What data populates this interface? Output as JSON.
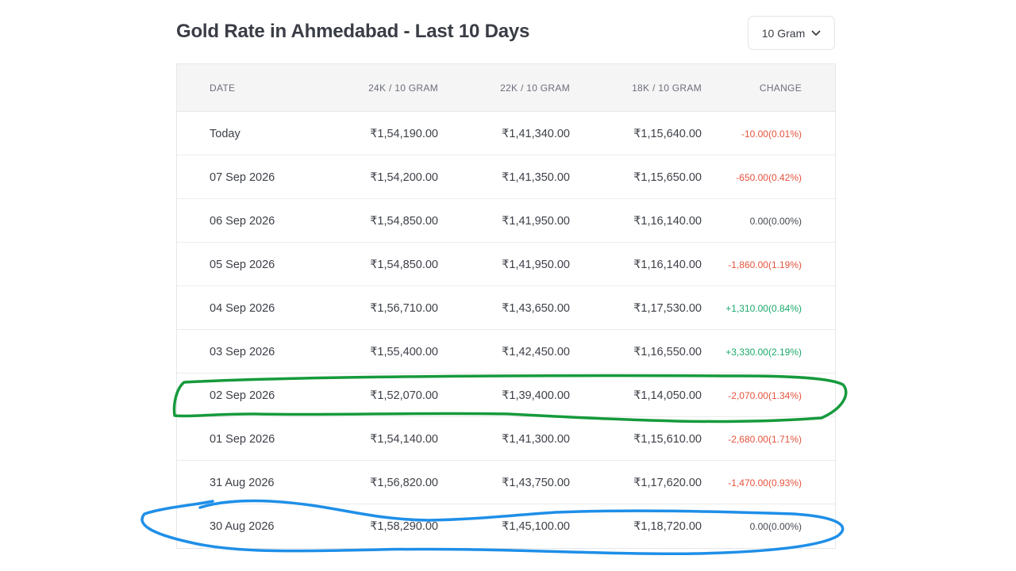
{
  "header": {
    "title": "Gold Rate in Ahmedabad - Last 10 Days",
    "unit_select": {
      "value": "10 Gram",
      "icon": "chevron-down-icon"
    }
  },
  "table": {
    "columns": [
      "DATE",
      "24K / 10 GRAM",
      "22K / 10 GRAM",
      "18K / 10 GRAM",
      "CHANGE"
    ],
    "rows": [
      {
        "date": "Today",
        "k24": "₹1,54,190.00",
        "k22": "₹1,41,340.00",
        "k18": "₹1,15,640.00",
        "change": "-10.00(0.01%)",
        "trend": "neg"
      },
      {
        "date": "07 Sep 2026",
        "k24": "₹1,54,200.00",
        "k22": "₹1,41,350.00",
        "k18": "₹1,15,650.00",
        "change": "-650.00(0.42%)",
        "trend": "neg"
      },
      {
        "date": "06 Sep 2026",
        "k24": "₹1,54,850.00",
        "k22": "₹1,41,950.00",
        "k18": "₹1,16,140.00",
        "change": "0.00(0.00%)",
        "trend": "neu"
      },
      {
        "date": "05 Sep 2026",
        "k24": "₹1,54,850.00",
        "k22": "₹1,41,950.00",
        "k18": "₹1,16,140.00",
        "change": "-1,860.00(1.19%)",
        "trend": "neg"
      },
      {
        "date": "04 Sep 2026",
        "k24": "₹1,56,710.00",
        "k22": "₹1,43,650.00",
        "k18": "₹1,17,530.00",
        "change": "+1,310.00(0.84%)",
        "trend": "pos"
      },
      {
        "date": "03 Sep 2026",
        "k24": "₹1,55,400.00",
        "k22": "₹1,42,450.00",
        "k18": "₹1,16,550.00",
        "change": "+3,330.00(2.19%)",
        "trend": "pos"
      },
      {
        "date": "02 Sep 2026",
        "k24": "₹1,52,070.00",
        "k22": "₹1,39,400.00",
        "k18": "₹1,14,050.00",
        "change": "-2,070.00(1.34%)",
        "trend": "neg"
      },
      {
        "date": "01 Sep 2026",
        "k24": "₹1,54,140.00",
        "k22": "₹1,41,300.00",
        "k18": "₹1,15,610.00",
        "change": "-2,680.00(1.71%)",
        "trend": "neg"
      },
      {
        "date": "31 Aug 2026",
        "k24": "₹1,56,820.00",
        "k22": "₹1,43,750.00",
        "k18": "₹1,17,620.00",
        "change": "-1,470.00(0.93%)",
        "trend": "neg"
      },
      {
        "date": "30 Aug 2026",
        "k24": "₹1,58,290.00",
        "k22": "₹1,45,100.00",
        "k18": "₹1,18,720.00",
        "change": "0.00(0.00%)",
        "trend": "neu"
      }
    ]
  },
  "colors": {
    "negative": "#e5533d",
    "positive": "#1aa86b",
    "annotation_green": "#169a3c",
    "annotation_blue": "#1e8fe8"
  }
}
